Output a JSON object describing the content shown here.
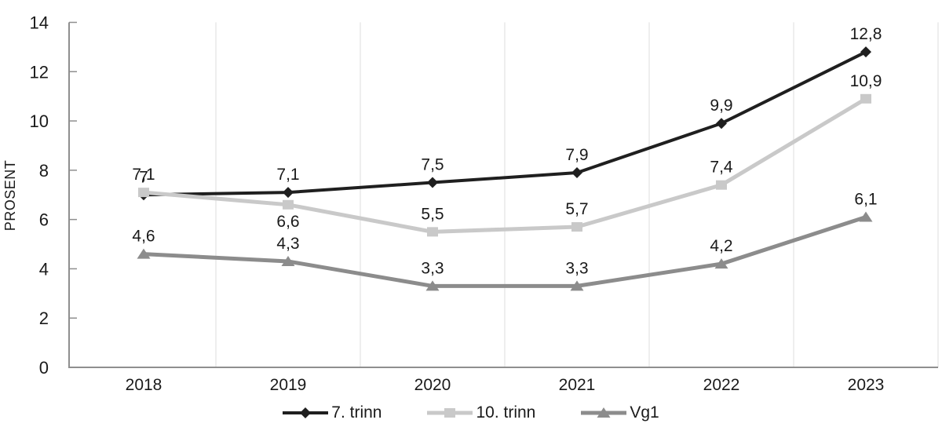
{
  "chart_data": {
    "type": "line",
    "title": "",
    "ylabel": "PROSENT",
    "xlabel": "",
    "categories": [
      "2018",
      "2019",
      "2020",
      "2021",
      "2022",
      "2023"
    ],
    "ylim": [
      0,
      14
    ],
    "yticks": [
      0,
      2,
      4,
      6,
      8,
      10,
      12,
      14
    ],
    "grid": "vertical-only",
    "legend_position": "bottom-center",
    "background": "#ffffff",
    "text_color": "#1a1a1a",
    "axis_color": "#8f8f8f",
    "gridline_color": "#e8e8e8",
    "series": [
      {
        "name": "7. trinn",
        "color": "#1f1f1f",
        "marker": "diamond",
        "line_width": 4,
        "values": [
          7,
          7.1,
          7.5,
          7.9,
          9.9,
          12.8
        ],
        "labels": [
          "7",
          "7,1",
          "7,5",
          "7,9",
          "9,9",
          "12,8"
        ],
        "label_positions": [
          "above",
          "above",
          "above",
          "above",
          "above",
          "above"
        ]
      },
      {
        "name": "10. trinn",
        "color": "#c9c9c9",
        "marker": "square",
        "line_width": 5,
        "values": [
          7.1,
          6.6,
          5.5,
          5.7,
          7.4,
          10.9
        ],
        "labels": [
          "7,1",
          "6,6",
          "5,5",
          "5,7",
          "7,4",
          "10,9"
        ],
        "label_positions": [
          "above",
          "below",
          "above",
          "above",
          "above",
          "above"
        ]
      },
      {
        "name": "Vg1",
        "color": "#8c8c8c",
        "marker": "triangle",
        "line_width": 5,
        "values": [
          4.6,
          4.3,
          3.3,
          3.3,
          4.2,
          6.1
        ],
        "labels": [
          "4,6",
          "4,3",
          "3,3",
          "3,3",
          "4,2",
          "6,1"
        ],
        "label_positions": [
          "above",
          "above",
          "above",
          "above",
          "above",
          "above"
        ]
      }
    ]
  }
}
